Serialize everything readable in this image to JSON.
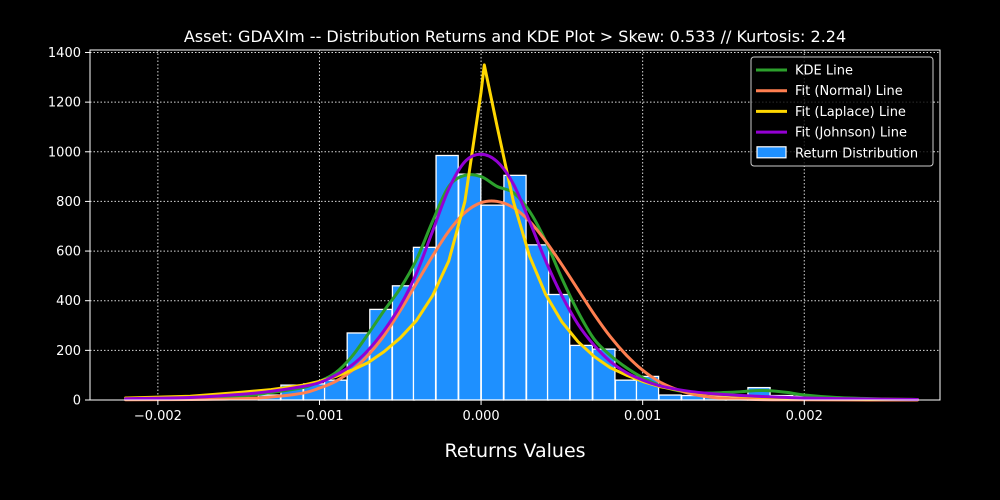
{
  "chart_data": {
    "type": "bar",
    "title": "Asset: GDAXIm -- Distribution Returns and KDE Plot > Skew: 0.533 // Kurtosis: 2.24",
    "xlabel": "Returns Values",
    "ylabel": "",
    "xlim": [
      -0.00242,
      0.00284
    ],
    "ylim": [
      0,
      1410
    ],
    "grid": true,
    "legend_placement": "top-right",
    "colors": {
      "background": "#000000",
      "bars": "#1e90ff",
      "bar_edge": "#ffffff",
      "kde": "#2ca02c",
      "normal": "#ff7f50",
      "laplace": "#ffd700",
      "johnson": "#9400d3",
      "grid": "#ffffff"
    },
    "xticks": [
      {
        "value": -0.002,
        "label": "−0.002"
      },
      {
        "value": -0.001,
        "label": "−0.001"
      },
      {
        "value": 0.0,
        "label": "0.000"
      },
      {
        "value": 0.001,
        "label": "0.001"
      },
      {
        "value": 0.002,
        "label": "0.002"
      }
    ],
    "yticks": [
      {
        "value": 0,
        "label": "0"
      },
      {
        "value": 200,
        "label": "200"
      },
      {
        "value": 400,
        "label": "400"
      },
      {
        "value": 600,
        "label": "600"
      },
      {
        "value": 800,
        "label": "800"
      },
      {
        "value": 1000,
        "label": "1000"
      },
      {
        "value": 1200,
        "label": "1200"
      },
      {
        "value": 1400,
        "label": "1400"
      }
    ],
    "bin_width": 0.000137,
    "histogram": {
      "name": "Return Distribution",
      "bins": [
        {
          "x": -0.00131,
          "value": 20
        },
        {
          "x": -0.00117,
          "value": 60
        },
        {
          "x": -0.00103,
          "value": 65
        },
        {
          "x": -0.0009,
          "value": 80
        },
        {
          "x": -0.00076,
          "value": 270
        },
        {
          "x": -0.00062,
          "value": 365
        },
        {
          "x": -0.00048,
          "value": 460
        },
        {
          "x": -0.00035,
          "value": 615
        },
        {
          "x": -0.00021,
          "value": 985
        },
        {
          "x": -7e-05,
          "value": 910
        },
        {
          "x": 7e-05,
          "value": 785
        },
        {
          "x": 0.00021,
          "value": 905
        },
        {
          "x": 0.00035,
          "value": 625
        },
        {
          "x": 0.00048,
          "value": 425
        },
        {
          "x": 0.00062,
          "value": 220
        },
        {
          "x": 0.00076,
          "value": 205
        },
        {
          "x": 0.0009,
          "value": 80
        },
        {
          "x": 0.00103,
          "value": 95
        },
        {
          "x": 0.00117,
          "value": 20
        },
        {
          "x": 0.00131,
          "value": 18
        },
        {
          "x": 0.00145,
          "value": 15
        },
        {
          "x": 0.00158,
          "value": 12
        },
        {
          "x": 0.00172,
          "value": 50
        },
        {
          "x": 0.00186,
          "value": 18
        },
        {
          "x": 0.00199,
          "value": 15
        },
        {
          "x": 0.00213,
          "value": 12
        }
      ]
    },
    "series": [
      {
        "name": "KDE Line",
        "color": "#2ca02c",
        "x": [
          -0.0022,
          -0.0018,
          -0.0015,
          -0.0013,
          -0.0011,
          -0.001,
          -0.0009,
          -0.0008,
          -0.0007,
          -0.0006,
          -0.0005,
          -0.0004,
          -0.0003,
          -0.0002,
          -0.0001,
          0.0,
          0.0001,
          0.0002,
          0.0003,
          0.0004,
          0.0005,
          0.0006,
          0.0007,
          0.0008,
          0.0009,
          0.001,
          0.0011,
          0.0012,
          0.0013,
          0.0014,
          0.0015,
          0.0016,
          0.0017,
          0.0018,
          0.0019,
          0.002,
          0.0022,
          0.0025,
          0.0027
        ],
        "y": [
          3,
          8,
          15,
          30,
          50,
          75,
          110,
          175,
          265,
          360,
          450,
          565,
          720,
          860,
          905,
          900,
          860,
          835,
          760,
          640,
          490,
          355,
          245,
          180,
          130,
          90,
          60,
          40,
          30,
          28,
          30,
          33,
          38,
          37,
          30,
          20,
          10,
          4,
          2
        ]
      },
      {
        "name": "Fit (Normal) Line",
        "color": "#ff7f50",
        "x": [
          -0.0022,
          -0.0018,
          -0.0015,
          -0.0013,
          -0.0011,
          -0.001,
          -0.0009,
          -0.0008,
          -0.0007,
          -0.0006,
          -0.0005,
          -0.0004,
          -0.0003,
          -0.0002,
          -0.0001,
          0.0,
          0.0001,
          0.0002,
          0.0003,
          0.0004,
          0.0005,
          0.0006,
          0.0007,
          0.0008,
          0.0009,
          0.001,
          0.0011,
          0.0012,
          0.0013,
          0.0014,
          0.0015,
          0.0017,
          0.002,
          0.0024,
          0.0027
        ],
        "y": [
          1,
          2,
          5,
          12,
          28,
          48,
          75,
          118,
          180,
          260,
          360,
          470,
          580,
          680,
          755,
          795,
          800,
          775,
          720,
          640,
          545,
          445,
          345,
          255,
          180,
          120,
          75,
          45,
          25,
          13,
          7,
          2,
          1,
          0,
          0
        ]
      },
      {
        "name": "Fit (Laplace) Line",
        "color": "#ffd700",
        "x": [
          -0.0022,
          -0.0018,
          -0.0015,
          -0.0013,
          -0.0011,
          -0.001,
          -0.0009,
          -0.0008,
          -0.0007,
          -0.0006,
          -0.0005,
          -0.0004,
          -0.0003,
          -0.0002,
          -0.0001,
          0.0,
          2e-05,
          0.0001,
          0.0002,
          0.0003,
          0.0004,
          0.0005,
          0.0006,
          0.0007,
          0.0008,
          0.0009,
          0.001,
          0.0011,
          0.0012,
          0.0013,
          0.0014,
          0.0015,
          0.0017,
          0.002,
          0.0024,
          0.0027
        ],
        "y": [
          8,
          15,
          30,
          42,
          60,
          75,
          95,
          120,
          150,
          195,
          250,
          320,
          420,
          560,
          800,
          1240,
          1350,
          1100,
          800,
          580,
          425,
          315,
          235,
          175,
          130,
          100,
          75,
          55,
          42,
          32,
          25,
          20,
          12,
          6,
          3,
          2
        ]
      },
      {
        "name": "Fit (Johnson) Line",
        "color": "#9400d3",
        "x": [
          -0.0022,
          -0.0018,
          -0.0015,
          -0.0013,
          -0.0011,
          -0.001,
          -0.0009,
          -0.0008,
          -0.0007,
          -0.0006,
          -0.0005,
          -0.0004,
          -0.0003,
          -0.0002,
          -0.0001,
          0.0,
          0.0001,
          0.0002,
          0.0003,
          0.0004,
          0.0005,
          0.0006,
          0.0007,
          0.0008,
          0.0009,
          0.001,
          0.0011,
          0.0012,
          0.0013,
          0.0014,
          0.0015,
          0.0017,
          0.002,
          0.0024,
          0.0027
        ],
        "y": [
          5,
          10,
          22,
          35,
          55,
          70,
          100,
          140,
          200,
          280,
          380,
          510,
          680,
          850,
          960,
          990,
          960,
          870,
          720,
          560,
          420,
          305,
          220,
          155,
          110,
          80,
          58,
          44,
          34,
          27,
          22,
          15,
          8,
          4,
          2
        ]
      }
    ]
  }
}
